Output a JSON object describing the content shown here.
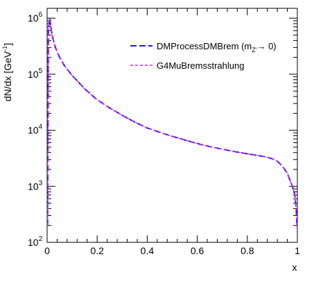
{
  "chart_data": {
    "type": "line",
    "xlabel": "x",
    "ylabel": "dN/dx [GeV",
    "ylabel_sup": "-1",
    "ylabel_close": "]",
    "xlim": [
      0,
      1
    ],
    "ylim": [
      100,
      1500000
    ],
    "yscale": "log",
    "x_ticks": [
      {
        "value": 0,
        "label": "0"
      },
      {
        "value": 0.2,
        "label": "0.2"
      },
      {
        "value": 0.4,
        "label": "0.4"
      },
      {
        "value": 0.6,
        "label": "0.6"
      },
      {
        "value": 0.8,
        "label": "0.8"
      },
      {
        "value": 1,
        "label": "1"
      }
    ],
    "y_ticks": [
      {
        "value": 100,
        "base": "10",
        "exp": "2"
      },
      {
        "value": 1000,
        "base": "10",
        "exp": "3"
      },
      {
        "value": 10000,
        "base": "10",
        "exp": "4"
      },
      {
        "value": 100000,
        "base": "10",
        "exp": "5"
      },
      {
        "value": 1000000,
        "base": "10",
        "exp": "6"
      }
    ],
    "legend": {
      "placement": "top-right",
      "entries": [
        {
          "label_main": "DMProcessDMBrem (m",
          "label_sub": "Z'",
          "label_rest": "→ 0)",
          "color": "#1a1aff",
          "dash": "long-dash"
        },
        {
          "label_main": "G4MuBremsstrahlung",
          "label_sub": "",
          "label_rest": "",
          "color": "#e020e0",
          "dash": "short-dash"
        }
      ]
    },
    "series": [
      {
        "name": "DMProcessDMBrem (mZ'→ 0)",
        "color": "#1a1aff",
        "x": [
          0.002,
          0.005,
          0.01,
          0.015,
          0.02,
          0.03,
          0.04,
          0.05,
          0.07,
          0.1,
          0.15,
          0.2,
          0.25,
          0.3,
          0.35,
          0.4,
          0.45,
          0.5,
          0.55,
          0.6,
          0.65,
          0.7,
          0.75,
          0.8,
          0.85,
          0.88,
          0.9,
          0.92,
          0.94,
          0.96,
          0.97,
          0.98,
          0.99,
          0.995,
          0.999
        ],
        "y": [
          200,
          600000,
          1000000,
          700000,
          500000,
          330000,
          250000,
          200000,
          140000,
          95000,
          55000,
          35000,
          25000,
          18500,
          14000,
          11000,
          9200,
          7800,
          6700,
          5800,
          5100,
          4600,
          4150,
          3800,
          3500,
          3300,
          3100,
          2800,
          2300,
          1700,
          1300,
          1000,
          700,
          400,
          180
        ]
      },
      {
        "name": "G4MuBremsstrahlung",
        "color": "#e020e0",
        "x": [
          0.002,
          0.005,
          0.01,
          0.015,
          0.02,
          0.03,
          0.04,
          0.05,
          0.07,
          0.1,
          0.15,
          0.2,
          0.25,
          0.3,
          0.35,
          0.4,
          0.45,
          0.5,
          0.55,
          0.6,
          0.65,
          0.7,
          0.75,
          0.8,
          0.85,
          0.88,
          0.9,
          0.92,
          0.94,
          0.96,
          0.97,
          0.98,
          0.99,
          0.995,
          0.999
        ],
        "y": [
          200,
          600000,
          1000000,
          700000,
          500000,
          330000,
          250000,
          200000,
          140000,
          95000,
          55000,
          35000,
          25000,
          18500,
          14000,
          11000,
          9200,
          7800,
          6700,
          5800,
          5100,
          4600,
          4150,
          3800,
          3500,
          3300,
          3100,
          2800,
          2300,
          1700,
          1300,
          1000,
          700,
          400,
          180
        ]
      }
    ]
  }
}
